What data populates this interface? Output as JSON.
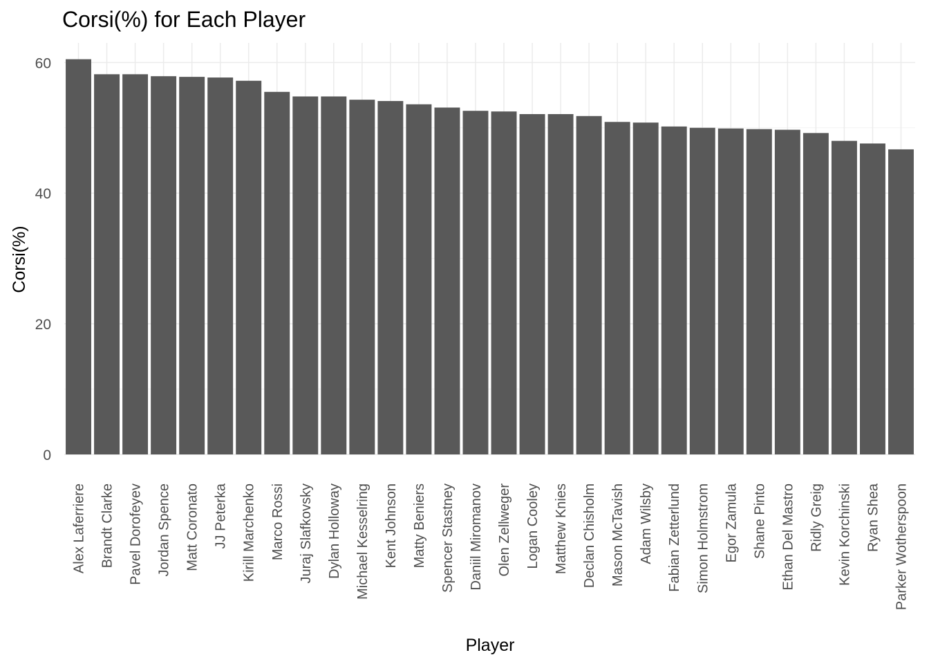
{
  "chart_data": {
    "type": "bar",
    "title": "Corsi(%) for Each Player",
    "xlabel": "Player",
    "ylabel": "Corsi(%)",
    "ylim": [
      0,
      63
    ],
    "yticks": [
      0,
      20,
      40,
      60
    ],
    "grid": true,
    "bar_color": "#595959",
    "grid_color": "#ebebeb",
    "categories": [
      "Alex Laferriere",
      "Brandt Clarke",
      "Pavel Dorofeyev",
      "Jordan Spence",
      "Matt Coronato",
      "JJ Peterka",
      "Kirill Marchenko",
      "Marco Rossi",
      "Juraj Slafkovsky",
      "Dylan Holloway",
      "Michael Kesselring",
      "Kent Johnson",
      "Matty Beniers",
      "Spencer Stastney",
      "Daniil Miromanov",
      "Olen Zellweger",
      "Logan Cooley",
      "Matthew Knies",
      "Declan Chisholm",
      "Mason McTavish",
      "Adam Wilsby",
      "Fabian Zetterlund",
      "Simon Holmstrom",
      "Egor Zamula",
      "Shane Pinto",
      "Ethan Del Mastro",
      "Ridly Greig",
      "Kevin Korchinski",
      "Ryan Shea",
      "Parker Wotherspoon"
    ],
    "values": [
      60.5,
      58.2,
      58.2,
      57.9,
      57.8,
      57.7,
      57.2,
      55.5,
      54.8,
      54.8,
      54.3,
      54.1,
      53.6,
      53.1,
      52.6,
      52.5,
      52.1,
      52.1,
      51.8,
      50.9,
      50.8,
      50.2,
      50.0,
      49.9,
      49.8,
      49.7,
      49.2,
      48.0,
      47.6,
      46.7
    ]
  }
}
